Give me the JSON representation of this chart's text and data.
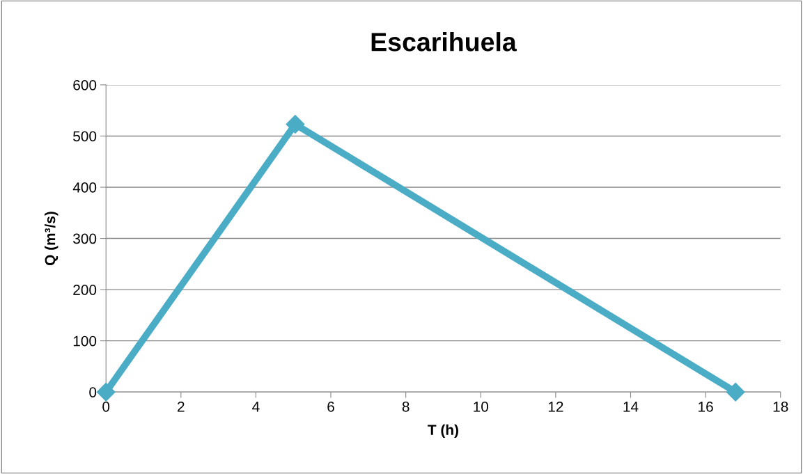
{
  "chart_data": {
    "type": "line",
    "title": "Escarihuela",
    "xlabel": "T (h)",
    "ylabel": "Q (m³/s)",
    "x": [
      0,
      5.05,
      16.8
    ],
    "series": [
      {
        "color": "#4bacc6",
        "values": [
          0,
          523,
          0
        ]
      }
    ],
    "xlim": [
      0,
      18
    ],
    "xticks": [
      0,
      2,
      4,
      6,
      8,
      10,
      12,
      14,
      16,
      18
    ],
    "ylim": [
      0,
      600
    ],
    "yticks": [
      0,
      100,
      200,
      300,
      400,
      500,
      600
    ],
    "grid": "y",
    "legend": false,
    "marker": "diamond",
    "line_style": "solid"
  }
}
